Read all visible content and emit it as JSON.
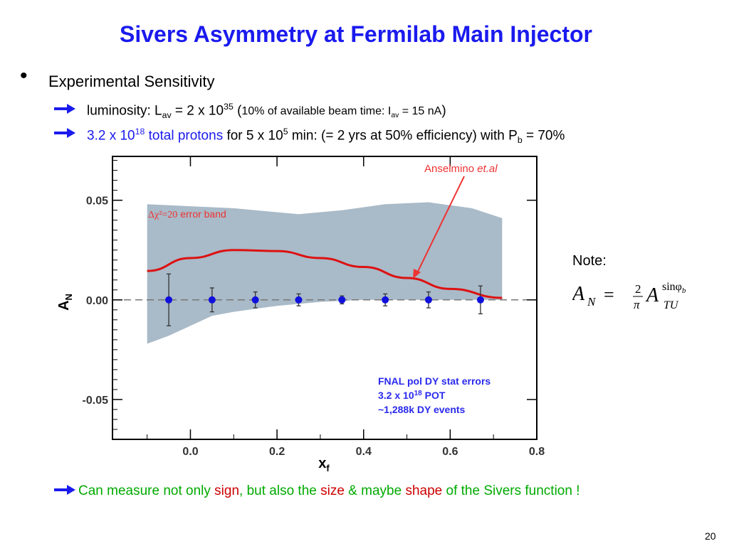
{
  "slide": {
    "title": "Sivers Asymmetry at Fermilab Main Injector",
    "bullet": "Experimental Sensitivity",
    "line1": {
      "prefix": "luminosity: L",
      "sub_av": "av",
      "mid": " = 2 x 10",
      "exp": "35",
      "paren_open": " (",
      "note_a": "10% of available beam time: I",
      "note_sub": "av",
      "note_b": " = 15 nA",
      "paren_close": ")"
    },
    "line2": {
      "blue_a": "3.2 x 10",
      "blue_exp": "18",
      "blue_b": " total protons",
      "rest_a": " for 5 x 10",
      "rest_exp": "5",
      "rest_b": " min:  (= 2 yrs at 50% efficiency) with P",
      "rest_sub": "b",
      "rest_c": " = 70%"
    },
    "note_label": "Note:",
    "formula": {
      "lhs": "A",
      "lhs_sub": "N",
      "equals": "=",
      "frac_num": "2",
      "frac_den": "π",
      "rhs": "A",
      "rhs_sup": "sinφ",
      "rhs_sup_sub": "b",
      "rhs_sub": "TU"
    },
    "conclusion": {
      "a": "Can measure not only ",
      "b": "sign",
      "c": ", but also the ",
      "d": "size",
      "e": " & maybe ",
      "f": "shape",
      "g": " of the Sivers function !"
    },
    "page_number": "20"
  },
  "colors": {
    "title": "#1a1aee",
    "band": "#a9bac8",
    "curve": "#dd1111",
    "points": "#1010dd",
    "annotation_red": "#ee3333",
    "stats_text": "#2a2aee",
    "conclusion_green": "#00aa00",
    "conclusion_red": "#cc0000"
  },
  "icons": {
    "bullet": "bullet-dot",
    "arrow": "right-arrow-icon"
  },
  "chart_data": {
    "type": "scatter",
    "xlabel": "x",
    "xlabel_sub": "f",
    "ylabel": "A",
    "ylabel_sub": "N",
    "xlim": [
      -0.18,
      0.8
    ],
    "ylim": [
      -0.07,
      0.072
    ],
    "x_ticks": [
      0.0,
      0.2,
      0.4,
      0.6,
      0.8
    ],
    "x_tick_labels": [
      "0.0",
      "0.2",
      "0.4",
      "0.6",
      "0.8"
    ],
    "y_ticks": [
      -0.05,
      0.0,
      0.05
    ],
    "y_tick_labels": [
      "-0.05",
      "0.00",
      "0.05"
    ],
    "series": [
      {
        "name": "FNAL pol DY stat errors",
        "points": [
          {
            "x": -0.05,
            "y": 0.0,
            "err": 0.013
          },
          {
            "x": 0.05,
            "y": 0.0,
            "err": 0.006
          },
          {
            "x": 0.15,
            "y": 0.0,
            "err": 0.004
          },
          {
            "x": 0.25,
            "y": 0.0,
            "err": 0.003
          },
          {
            "x": 0.35,
            "y": 0.0,
            "err": 0.002
          },
          {
            "x": 0.45,
            "y": 0.0,
            "err": 0.003
          },
          {
            "x": 0.55,
            "y": 0.0,
            "err": 0.004
          },
          {
            "x": 0.67,
            "y": 0.0,
            "err": 0.007
          }
        ]
      },
      {
        "name": "Anselmino et.al",
        "curve": [
          {
            "x": -0.1,
            "y": 0.0145
          },
          {
            "x": 0.0,
            "y": 0.021
          },
          {
            "x": 0.1,
            "y": 0.025
          },
          {
            "x": 0.2,
            "y": 0.0245
          },
          {
            "x": 0.3,
            "y": 0.021
          },
          {
            "x": 0.4,
            "y": 0.0165
          },
          {
            "x": 0.5,
            "y": 0.011
          },
          {
            "x": 0.6,
            "y": 0.0055
          },
          {
            "x": 0.72,
            "y": 0.001
          }
        ],
        "band_upper": [
          {
            "x": -0.1,
            "y": 0.048
          },
          {
            "x": 0.0,
            "y": 0.047
          },
          {
            "x": 0.1,
            "y": 0.046
          },
          {
            "x": 0.2,
            "y": 0.044
          },
          {
            "x": 0.25,
            "y": 0.043
          },
          {
            "x": 0.35,
            "y": 0.045
          },
          {
            "x": 0.45,
            "y": 0.048
          },
          {
            "x": 0.55,
            "y": 0.049
          },
          {
            "x": 0.65,
            "y": 0.046
          },
          {
            "x": 0.72,
            "y": 0.041
          }
        ],
        "band_lower": [
          {
            "x": 0.72,
            "y": 0.0
          },
          {
            "x": 0.6,
            "y": 0.0
          },
          {
            "x": 0.5,
            "y": 0.0
          },
          {
            "x": 0.4,
            "y": 0.0
          },
          {
            "x": 0.3,
            "y": -0.001
          },
          {
            "x": 0.2,
            "y": -0.003
          },
          {
            "x": 0.1,
            "y": -0.006
          },
          {
            "x": 0.05,
            "y": -0.008
          },
          {
            "x": 0.0,
            "y": -0.013
          },
          {
            "x": -0.05,
            "y": -0.018
          },
          {
            "x": -0.1,
            "y": -0.022
          }
        ]
      }
    ],
    "annotations": {
      "band_label_symbol": "Δχ²=20",
      "band_label_text": " error band",
      "model_label_a": "Anselmino ",
      "model_label_b": "et.al",
      "stats_line1": "FNAL pol DY stat errors",
      "stats_line2_a": "3.2 x 10",
      "stats_line2_exp": "18",
      "stats_line2_b": " POT",
      "stats_line3": "~1,288k DY events"
    },
    "grid": false
  }
}
